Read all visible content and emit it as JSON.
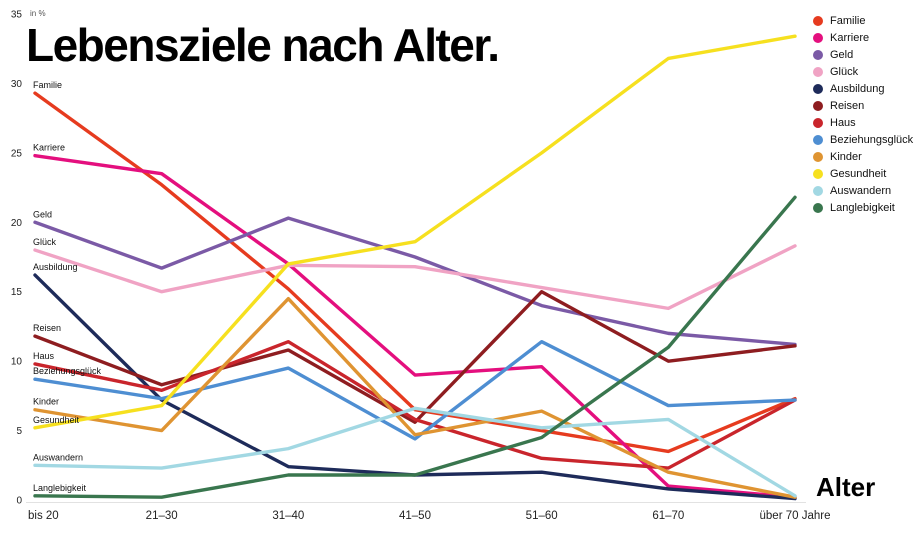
{
  "title": "Lebensziele nach Alter.",
  "unit_label": "in %",
  "x_axis_label": "Alter",
  "chart_data": {
    "type": "line",
    "title": "Lebensziele nach Alter.",
    "unit": "in %",
    "categories": [
      "bis 20",
      "21–30",
      "31–40",
      "41–50",
      "51–60",
      "61–70",
      "über 70 Jahre"
    ],
    "ylim": [
      0,
      35
    ],
    "yticks": [
      0,
      5,
      10,
      15,
      20,
      25,
      30,
      35
    ],
    "grid": false,
    "legend_position": "top-right",
    "series": [
      {
        "name": "Familie",
        "color": "#e63b1f",
        "values": [
          29.3,
          22.7,
          15.2,
          6.5,
          5.0,
          3.5,
          7.3
        ]
      },
      {
        "name": "Karriere",
        "color": "#e40f7e",
        "values": [
          24.8,
          23.5,
          17.0,
          9.0,
          9.6,
          1.0,
          0.2
        ]
      },
      {
        "name": "Geld",
        "color": "#7b5aa6",
        "values": [
          20.0,
          16.7,
          20.3,
          17.5,
          14.0,
          12.0,
          11.2
        ]
      },
      {
        "name": "Glück",
        "color": "#f0a3c4",
        "values": [
          18.0,
          15.0,
          16.9,
          16.8,
          15.3,
          13.8,
          18.3
        ]
      },
      {
        "name": "Ausbildung",
        "color": "#1e2b5a",
        "values": [
          16.2,
          7.2,
          2.4,
          1.8,
          2.0,
          0.8,
          0.1
        ]
      },
      {
        "name": "Reisen",
        "color": "#8e1d20",
        "values": [
          11.8,
          8.3,
          10.8,
          5.6,
          15.0,
          10.0,
          11.1
        ]
      },
      {
        "name": "Haus",
        "color": "#c9252c",
        "values": [
          9.8,
          7.9,
          11.4,
          5.8,
          3.0,
          2.3,
          7.2
        ]
      },
      {
        "name": "Beziehungsglück",
        "color": "#4e8ed2",
        "values": [
          8.7,
          7.3,
          9.5,
          4.4,
          11.4,
          6.8,
          7.2
        ]
      },
      {
        "name": "Kinder",
        "color": "#df9432",
        "values": [
          6.5,
          5.0,
          14.5,
          4.7,
          6.4,
          2.0,
          0.2
        ]
      },
      {
        "name": "Gesundheit",
        "color": "#f6e01f",
        "values": [
          5.2,
          6.8,
          17.0,
          18.6,
          25.0,
          31.8,
          33.4
        ]
      },
      {
        "name": "Auswandern",
        "color": "#a2d8e3",
        "values": [
          2.5,
          2.3,
          3.7,
          6.6,
          5.2,
          5.8,
          0.3
        ]
      },
      {
        "name": "Langlebigkeit",
        "color": "#39764e",
        "values": [
          0.3,
          0.2,
          1.8,
          1.8,
          4.5,
          11.0,
          21.8
        ]
      }
    ]
  }
}
